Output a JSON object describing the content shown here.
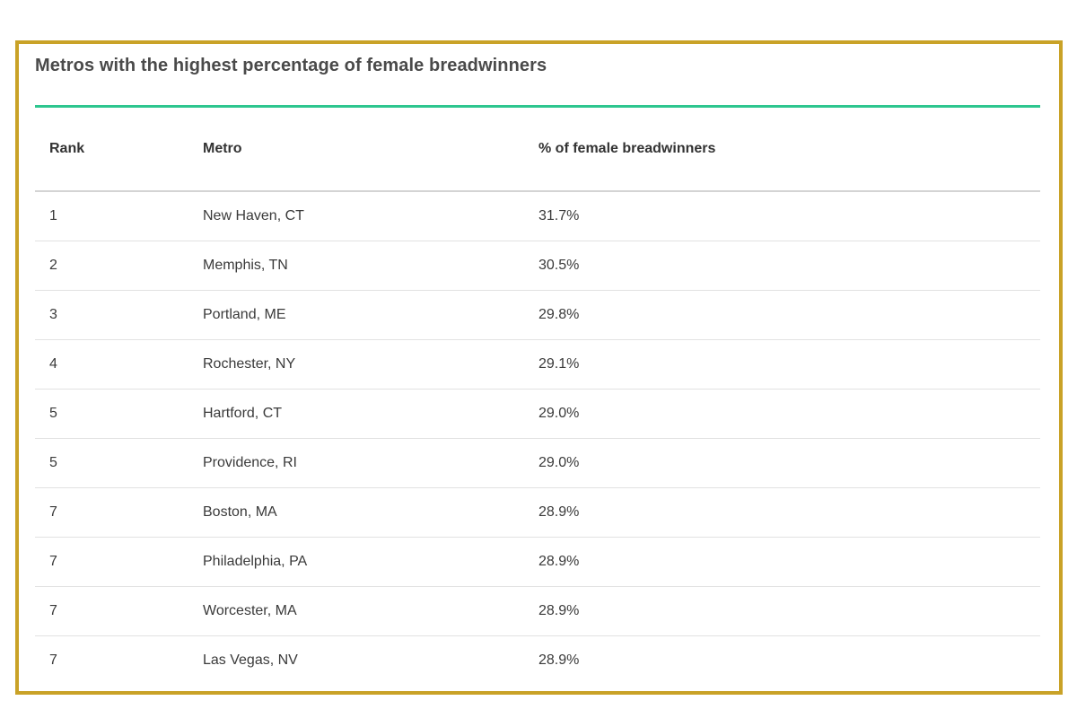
{
  "chart_data": {
    "type": "table",
    "title": "Metros with the highest percentage of female breadwinners",
    "columns": [
      "Rank",
      "Metro",
      "% of female breadwinners"
    ],
    "rows": [
      {
        "rank": "1",
        "metro": "New Haven, CT",
        "pct": "31.7%"
      },
      {
        "rank": "2",
        "metro": "Memphis, TN",
        "pct": "30.5%"
      },
      {
        "rank": "3",
        "metro": "Portland, ME",
        "pct": "29.8%"
      },
      {
        "rank": "4",
        "metro": "Rochester, NY",
        "pct": "29.1%"
      },
      {
        "rank": "5",
        "metro": "Hartford, CT",
        "pct": "29.0%"
      },
      {
        "rank": "5",
        "metro": "Providence, RI",
        "pct": "29.0%"
      },
      {
        "rank": "7",
        "metro": "Boston, MA",
        "pct": "28.9%"
      },
      {
        "rank": "7",
        "metro": "Philadelphia, PA",
        "pct": "28.9%"
      },
      {
        "rank": "7",
        "metro": "Worcester, MA",
        "pct": "28.9%"
      },
      {
        "rank": "7",
        "metro": "Las Vegas, NV",
        "pct": "28.9%"
      }
    ]
  },
  "colors": {
    "frame_border": "#c9a227",
    "accent_rule": "#2ec68f"
  }
}
